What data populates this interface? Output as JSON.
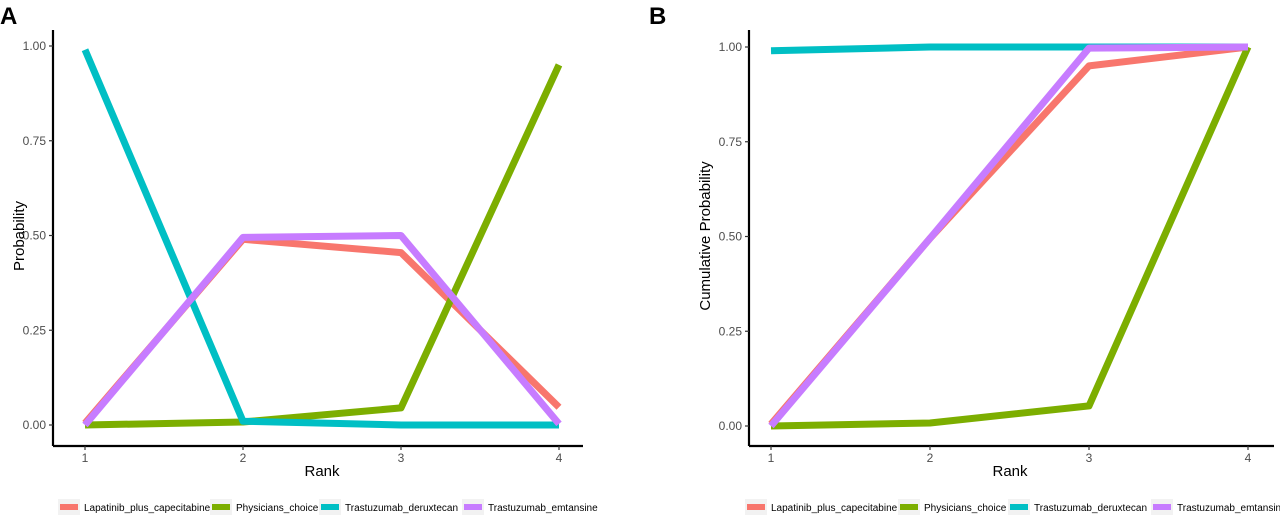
{
  "chart_data": [
    {
      "type": "line",
      "panel": "A",
      "title": "",
      "xlabel": "Rank",
      "ylabel": "Probability",
      "x": [
        1,
        2,
        3,
        4
      ],
      "xticks": [
        "1",
        "2",
        "3",
        "4"
      ],
      "ylim": [
        0,
        1
      ],
      "yticks": [
        "0.00",
        "0.25",
        "0.50",
        "0.75",
        "1.00"
      ],
      "ytick_values": [
        0,
        0.25,
        0.5,
        0.75,
        1.0
      ],
      "grid": false,
      "legend_position": "bottom",
      "series": [
        {
          "name": "Lapatinib_plus_capecitabine",
          "color": "#F8766D",
          "values": [
            0.005,
            0.49,
            0.455,
            0.047
          ]
        },
        {
          "name": "Physicians_choice",
          "color": "#7CAE00",
          "values": [
            0.0,
            0.008,
            0.045,
            0.95
          ]
        },
        {
          "name": "Trastuzumab_deruxtecan",
          "color": "#00BFC4",
          "values": [
            0.99,
            0.01,
            0.0,
            0.0
          ]
        },
        {
          "name": "Trastuzumab_emtansine",
          "color": "#C77CFF",
          "values": [
            0.0,
            0.495,
            0.5,
            0.003
          ]
        }
      ]
    },
    {
      "type": "line",
      "panel": "B",
      "title": "",
      "xlabel": "Rank",
      "ylabel": "Cumulative Probability",
      "x": [
        1,
        2,
        3,
        4
      ],
      "xticks": [
        "1",
        "2",
        "3",
        "4"
      ],
      "ylim": [
        0,
        1
      ],
      "yticks": [
        "0.00",
        "0.25",
        "0.50",
        "0.75",
        "1.00"
      ],
      "ytick_values": [
        0,
        0.25,
        0.5,
        0.75,
        1.0
      ],
      "grid": false,
      "legend_position": "bottom",
      "series": [
        {
          "name": "Lapatinib_plus_capecitabine",
          "color": "#F8766D",
          "values": [
            0.005,
            0.495,
            0.95,
            1.0
          ]
        },
        {
          "name": "Physicians_choice",
          "color": "#7CAE00",
          "values": [
            0.0,
            0.008,
            0.053,
            1.0
          ]
        },
        {
          "name": "Trastuzumab_deruxtecan",
          "color": "#00BFC4",
          "values": [
            0.99,
            1.0,
            1.0,
            1.0
          ]
        },
        {
          "name": "Trastuzumab_emtansine",
          "color": "#C77CFF",
          "values": [
            0.0,
            0.495,
            0.997,
            1.0
          ]
        }
      ]
    }
  ]
}
